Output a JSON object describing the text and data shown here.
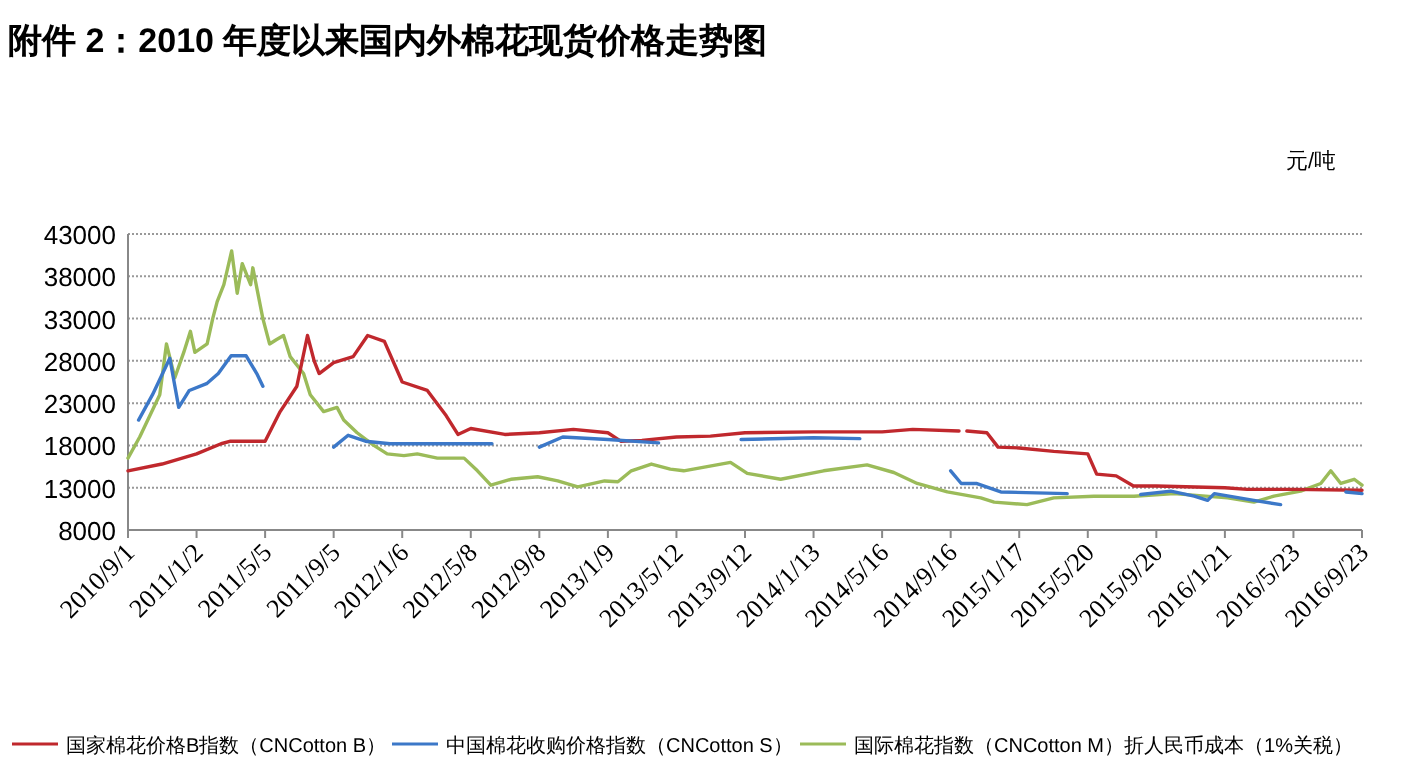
{
  "chart_data": {
    "type": "line",
    "title": "附件 2：2010 年度以来国内外棉花现货价格走势图",
    "ylabel": "元/吨",
    "xlim": [
      "2010-09-01",
      "2016-09-23"
    ],
    "xticks": [
      {
        "value": "2010-09-01",
        "label": "2010/9/1"
      },
      {
        "value": "2011-01-02",
        "label": "2011/1/2"
      },
      {
        "value": "2011-05-05",
        "label": "2011/5/5"
      },
      {
        "value": "2011-09-05",
        "label": "2011/9/5"
      },
      {
        "value": "2012-01-06",
        "label": "2012/1/6"
      },
      {
        "value": "2012-05-08",
        "label": "2012/5/8"
      },
      {
        "value": "2012-09-08",
        "label": "2012/9/8"
      },
      {
        "value": "2013-01-09",
        "label": "2013/1/9"
      },
      {
        "value": "2013-05-12",
        "label": "2013/5/12"
      },
      {
        "value": "2013-09-12",
        "label": "2013/9/12"
      },
      {
        "value": "2014-01-13",
        "label": "2014/1/13"
      },
      {
        "value": "2014-05-16",
        "label": "2014/5/16"
      },
      {
        "value": "2014-09-16",
        "label": "2014/9/16"
      },
      {
        "value": "2015-01-17",
        "label": "2015/1/17"
      },
      {
        "value": "2015-05-20",
        "label": "2015/5/20"
      },
      {
        "value": "2015-09-20",
        "label": "2015/9/20"
      },
      {
        "value": "2016-01-21",
        "label": "2016/1/21"
      },
      {
        "value": "2016-05-23",
        "label": "2016/5/23"
      },
      {
        "value": "2016-09-23",
        "label": "2016/9/23"
      }
    ],
    "ylim": [
      8000,
      43000
    ],
    "yticks": [
      8000,
      13000,
      18000,
      23000,
      28000,
      33000,
      38000,
      43000
    ],
    "grid": "y",
    "legend": "bottom",
    "marker": "none",
    "line_style": "solid",
    "series": [
      {
        "name": "国家棉花价格B指数（CNCotton B）",
        "color": "#c0282d",
        "x": [
          "2010-09-01",
          "2010-11-01",
          "2011-01-02",
          "2011-02-15",
          "2011-03-04",
          "2011-05-05",
          "2011-06-01",
          "2011-07-01",
          "2011-07-20",
          "2011-08-01",
          "2011-08-10",
          "2011-09-05",
          "2011-10-10",
          "2011-11-05",
          "2011-12-05",
          "2012-01-06",
          "2012-02-20",
          "2012-03-25",
          "2012-04-15",
          "2012-05-08",
          "2012-07-08",
          "2012-09-08",
          "2012-11-08",
          "2013-01-09",
          "2013-02-01",
          "2013-03-11",
          "2013-05-12",
          "2013-07-12",
          "2013-09-12",
          "2014-01-13",
          "2014-05-16",
          "2014-07-10",
          "2014-10-01",
          "2014-10-08",
          "2014-10-15",
          "2014-11-20",
          "2014-12-10",
          "2015-01-17",
          "2015-03-20",
          "2015-05-20",
          "2015-06-05",
          "2015-07-10",
          "2015-08-10",
          "2015-09-20",
          "2016-01-21",
          "2016-03-01",
          "2016-05-23",
          "2016-09-23"
        ],
        "values": [
          15000,
          15800,
          17000,
          18200,
          18500,
          18500,
          22000,
          25000,
          31000,
          28000,
          26500,
          27800,
          28500,
          31000,
          30300,
          25500,
          24500,
          21500,
          19300,
          20000,
          19300,
          19500,
          19900,
          19500,
          18500,
          18600,
          19000,
          19100,
          19500,
          19600,
          19600,
          19900,
          19700,
          null,
          19700,
          19500,
          17800,
          17700,
          17300,
          17000,
          14600,
          14400,
          13200,
          13200,
          13000,
          12800,
          12800,
          12700
        ]
      },
      {
        "name": "中国棉花收购价格指数（CNCotton S）",
        "color": "#3c78c8",
        "x": [
          "2010-09-20",
          "2010-10-15",
          "2010-11-15",
          "2010-12-01",
          "2010-12-20",
          "2011-01-20",
          "2011-02-10",
          "2011-03-05",
          "2011-04-01",
          "2011-04-20",
          "2011-05-01",
          "2011-07-01",
          "2011-09-05",
          "2011-10-01",
          "2011-11-01",
          "2011-12-15",
          "2012-06-15",
          "2012-08-01",
          "2012-09-08",
          "2012-10-20",
          "2013-01-09",
          "2013-04-10",
          "2013-06-15",
          "2013-09-05",
          "2014-01-13",
          "2014-04-06",
          "2014-07-01",
          "2014-09-16",
          "2014-10-05",
          "2014-11-01",
          "2014-12-15",
          "2015-04-13",
          "2015-06-01",
          "2015-08-23",
          "2015-10-16",
          "2015-11-27",
          "2015-12-21",
          "2016-01-02",
          "2016-03-13",
          "2016-04-30",
          "2016-07-01",
          "2016-08-25",
          "2016-09-23"
        ],
        "values": [
          21000,
          24000,
          28300,
          22500,
          24500,
          25300,
          26500,
          28600,
          28600,
          26500,
          25000,
          null,
          17800,
          19200,
          18500,
          18200,
          18200,
          null,
          17800,
          19000,
          18700,
          18300,
          null,
          18700,
          18900,
          18800,
          null,
          15000,
          13500,
          13500,
          12500,
          12300,
          null,
          12200,
          12600,
          12000,
          11500,
          12300,
          11500,
          11000,
          null,
          12500,
          12300
        ]
      },
      {
        "name": "国际棉花指数（CNCotton M）折人民币成本（1%关税）",
        "color": "#9bbb59",
        "x": [
          "2010-09-01",
          "2010-09-22",
          "2010-10-28",
          "2010-11-09",
          "2010-11-24",
          "2010-12-10",
          "2010-12-22",
          "2010-12-30",
          "2011-01-21",
          "2011-01-31",
          "2011-02-08",
          "2011-02-20",
          "2011-03-06",
          "2011-03-16",
          "2011-03-25",
          "2011-04-09",
          "2011-04-13",
          "2011-05-01",
          "2011-05-13",
          "2011-05-25",
          "2011-06-07",
          "2011-06-19",
          "2011-07-13",
          "2011-07-25",
          "2011-08-18",
          "2011-09-11",
          "2011-09-23",
          "2011-10-17",
          "2011-11-16",
          "2011-12-10",
          "2012-01-09",
          "2012-02-02",
          "2012-03-09",
          "2012-04-26",
          "2012-05-20",
          "2012-06-13",
          "2012-07-19",
          "2012-09-05",
          "2012-10-11",
          "2012-11-16",
          "2013-01-03",
          "2013-01-27",
          "2013-02-20",
          "2013-03-28",
          "2013-05-01",
          "2013-05-25",
          "2013-08-17",
          "2013-09-16",
          "2013-11-15",
          "2014-01-31",
          "2014-04-19",
          "2014-06-06",
          "2014-07-18",
          "2014-09-10",
          "2014-11-09",
          "2014-12-03",
          "2015-01-31",
          "2015-03-20",
          "2015-05-31",
          "2015-08-11",
          "2015-10-22",
          "2016-01-26",
          "2016-03-13",
          "2016-04-18",
          "2016-06-05",
          "2016-07-11",
          "2016-07-29",
          "2016-08-16",
          "2016-09-09",
          "2016-09-23"
        ],
        "values": [
          16500,
          19000,
          24000,
          30000,
          26000,
          29000,
          31500,
          29000,
          30000,
          33000,
          35000,
          37000,
          41000,
          36000,
          39500,
          37000,
          39000,
          33000,
          30000,
          30500,
          31000,
          28500,
          26500,
          24000,
          22000,
          22500,
          21000,
          19500,
          18000,
          17000,
          16800,
          17000,
          16500,
          16500,
          15000,
          13300,
          14000,
          14300,
          13800,
          13100,
          13800,
          13700,
          15000,
          15800,
          15200,
          15000,
          16000,
          14700,
          14000,
          15000,
          15700,
          14800,
          13500,
          12500,
          11800,
          11300,
          11000,
          11800,
          12000,
          12000,
          12300,
          11800,
          11300,
          12000,
          12600,
          13500,
          15000,
          13500,
          14000,
          13300
        ]
      }
    ]
  }
}
